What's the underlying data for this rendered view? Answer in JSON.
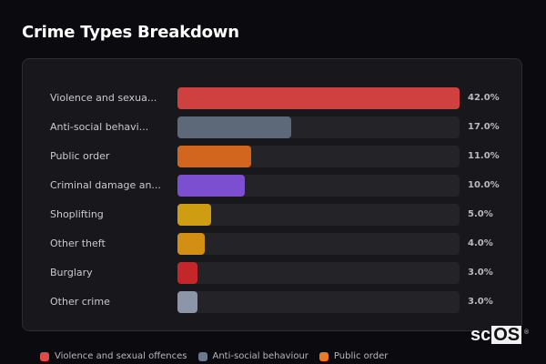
{
  "title": "Crime Types Breakdown",
  "chart_data": {
    "type": "bar",
    "orientation": "horizontal",
    "title": "Crime Types Breakdown",
    "categories": [
      "Violence and sexual offences",
      "Anti-social behaviour",
      "Public order",
      "Criminal damage and arson",
      "Shoplifting",
      "Other theft",
      "Burglary",
      "Other crime"
    ],
    "display_labels": [
      "Violence and sexua...",
      "Anti-social behavi...",
      "Public order",
      "Criminal damage an...",
      "Shoplifting",
      "Other theft",
      "Burglary",
      "Other crime"
    ],
    "values": [
      42.0,
      17.0,
      11.0,
      10.0,
      5.0,
      4.0,
      3.0,
      3.0
    ],
    "value_labels": [
      "42.0%",
      "17.0%",
      "11.0%",
      "10.0%",
      "5.0%",
      "4.0%",
      "3.0%",
      "3.0%"
    ],
    "colors": [
      "#cf4040",
      "#5d6878",
      "#d2661e",
      "#7b4fd0",
      "#cf9d12",
      "#d38f14",
      "#c4262a",
      "#8c96a8"
    ],
    "xlabel": "",
    "ylabel": "",
    "xlim": [
      0,
      42
    ],
    "grid": false,
    "legend_position": "bottom"
  },
  "legend": [
    {
      "label": "Violence and sexual offences",
      "color": "#e24a4a"
    },
    {
      "label": "Anti-social behaviour",
      "color": "#6a7890"
    },
    {
      "label": "Public order",
      "color": "#f07820"
    }
  ],
  "watermark": {
    "prefix": "sc",
    "boxed": "OS",
    "reg": "®"
  }
}
